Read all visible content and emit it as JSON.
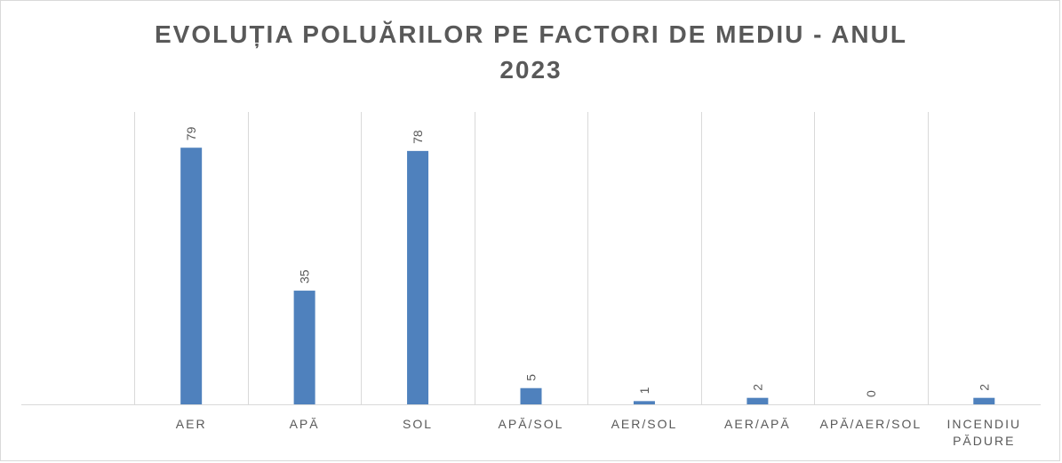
{
  "chart_data": {
    "type": "bar",
    "title": [
      "EVOLUȚIA  POLUĂRILOR  PE FACTORI  DE MEDIU  - ANUL",
      "2023"
    ],
    "categories": [
      "",
      "AER",
      "APĂ",
      "SOL",
      "APĂ/SOL",
      "AER/SOL",
      "AER/APĂ",
      "APĂ/AER/SOL",
      [
        "INCENDIU",
        "PĂDURE"
      ]
    ],
    "values": [
      null,
      79,
      35,
      78,
      5,
      1,
      2,
      0,
      2
    ],
    "data_labels": [
      "",
      "79",
      "35",
      "78",
      "5",
      "1",
      "2",
      "0",
      "2"
    ],
    "ylim": [
      0,
      90
    ],
    "grid": "vertical",
    "legend": "none",
    "colors": {
      "bar": "#4f81bd",
      "grid": "#d9d9d9",
      "text": "#595959"
    }
  }
}
